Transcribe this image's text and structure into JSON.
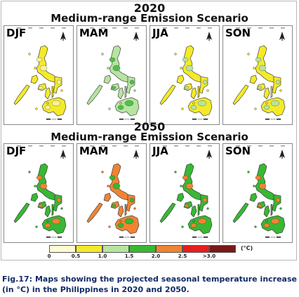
{
  "colors": {
    "bin_0_0p5": "#fffbd0",
    "bin_0p5_1p0": "#f4ea2a",
    "bin_1p0_1p5": "#b7e4a0",
    "bin_1p5_2p0": "#38b834",
    "bin_2p0_2p5": "#ef8434",
    "bin_2p5_3p0": "#e61e1e",
    "bin_gt_3p0": "#7a1818"
  },
  "sections": [
    {
      "year": "2020",
      "scenario": "Medium-range Emission Scenario",
      "panels": [
        {
          "season": "DJF",
          "fill": "#f4ea2a",
          "accent": "#f9f29a",
          "north_icon": "north-arrow-icon"
        },
        {
          "season": "MAM",
          "fill": "#b7e4a0",
          "accent": "#4fc24a",
          "north_icon": "north-arrow-icon"
        },
        {
          "season": "JJA",
          "fill": "#f4ea2a",
          "accent": "#b7e4a0",
          "north_icon": "north-arrow-icon"
        },
        {
          "season": "SON",
          "fill": "#f4ea2a",
          "accent": "#b7e4a0",
          "north_icon": "north-arrow-icon"
        }
      ]
    },
    {
      "year": "2050",
      "scenario": "Medium-range Emission Scenario",
      "panels": [
        {
          "season": "DJF",
          "fill": "#38b834",
          "accent": "#ef8434",
          "north_icon": "north-arrow-icon"
        },
        {
          "season": "MAM",
          "fill": "#ef8434",
          "accent": "#38b834",
          "north_icon": "north-arrow-icon"
        },
        {
          "season": "JJA",
          "fill": "#38b834",
          "accent": "#ef8434",
          "north_icon": "north-arrow-icon"
        },
        {
          "season": "SON",
          "fill": "#38b834",
          "accent": "#ef8434",
          "north_icon": "north-arrow-icon"
        }
      ]
    }
  ],
  "legend": {
    "unit": "(°C)",
    "ticks": [
      "0",
      "0.5",
      "1.0",
      "1.5",
      "2.0",
      "2.5",
      ">3.0"
    ],
    "bins": [
      {
        "color": "#fffbd0"
      },
      {
        "color": "#f4ea2a"
      },
      {
        "color": "#b7e4a0"
      },
      {
        "color": "#38b834"
      },
      {
        "color": "#ef8434"
      },
      {
        "color": "#e61e1e"
      },
      {
        "color": "#7a1818"
      }
    ]
  },
  "caption": "Fig.17: Maps showing the projected seasonal temperature increase (in °C) in the Philippines in 2020 and 2050."
}
